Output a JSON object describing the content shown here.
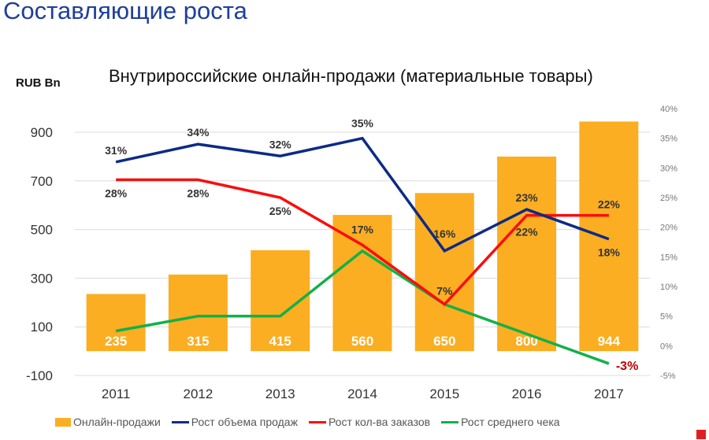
{
  "page_title": "Составляющие роста",
  "chart_data": {
    "type": "bar+line",
    "title": "Внутрироссийские онлайн-продажи (материальные товары)",
    "ylabel": "RUB Bn",
    "categories": [
      "2011",
      "2012",
      "2013",
      "2014",
      "2015",
      "2016",
      "2017"
    ],
    "left_axis": {
      "ticks": [
        "900",
        "700",
        "500",
        "300",
        "100",
        "-100"
      ],
      "ylim": [
        -100,
        900
      ]
    },
    "right_axis": {
      "ticks": [
        "40%",
        "35%",
        "30%",
        "25%",
        "20%",
        "15%",
        "10%",
        "5%",
        "0%",
        "-5%"
      ],
      "ylim": [
        -5,
        40
      ]
    },
    "bars": {
      "name": "Онлайн-продажи",
      "values": [
        235,
        315,
        415,
        560,
        650,
        800,
        944
      ],
      "labels": [
        "235",
        "315",
        "415",
        "560",
        "650",
        "800",
        "944"
      ],
      "color": "#fbae22"
    },
    "series": [
      {
        "name": "Рост объема продаж",
        "color": "#0d2b85",
        "values": [
          31,
          34,
          32,
          35,
          16,
          23,
          18
        ],
        "labels": [
          "31%",
          "34%",
          "32%",
          "35%",
          "16%",
          "23%",
          "18%"
        ]
      },
      {
        "name": "Рост кол-ва заказов",
        "color": "#fa0d0d",
        "values": [
          28,
          28,
          25,
          17,
          7,
          22,
          22
        ],
        "labels": [
          "28%",
          "28%",
          "25%",
          "17%",
          "7%",
          "22%",
          "22%"
        ]
      },
      {
        "name": "Рост среднего чека",
        "color": "#13b04a",
        "values": [
          2.5,
          5,
          5,
          16,
          7,
          2,
          -3
        ],
        "labels": [
          "",
          "",
          "",
          "",
          "",
          "",
          "-3%"
        ]
      }
    ],
    "grid": true,
    "legend": "bottom"
  }
}
